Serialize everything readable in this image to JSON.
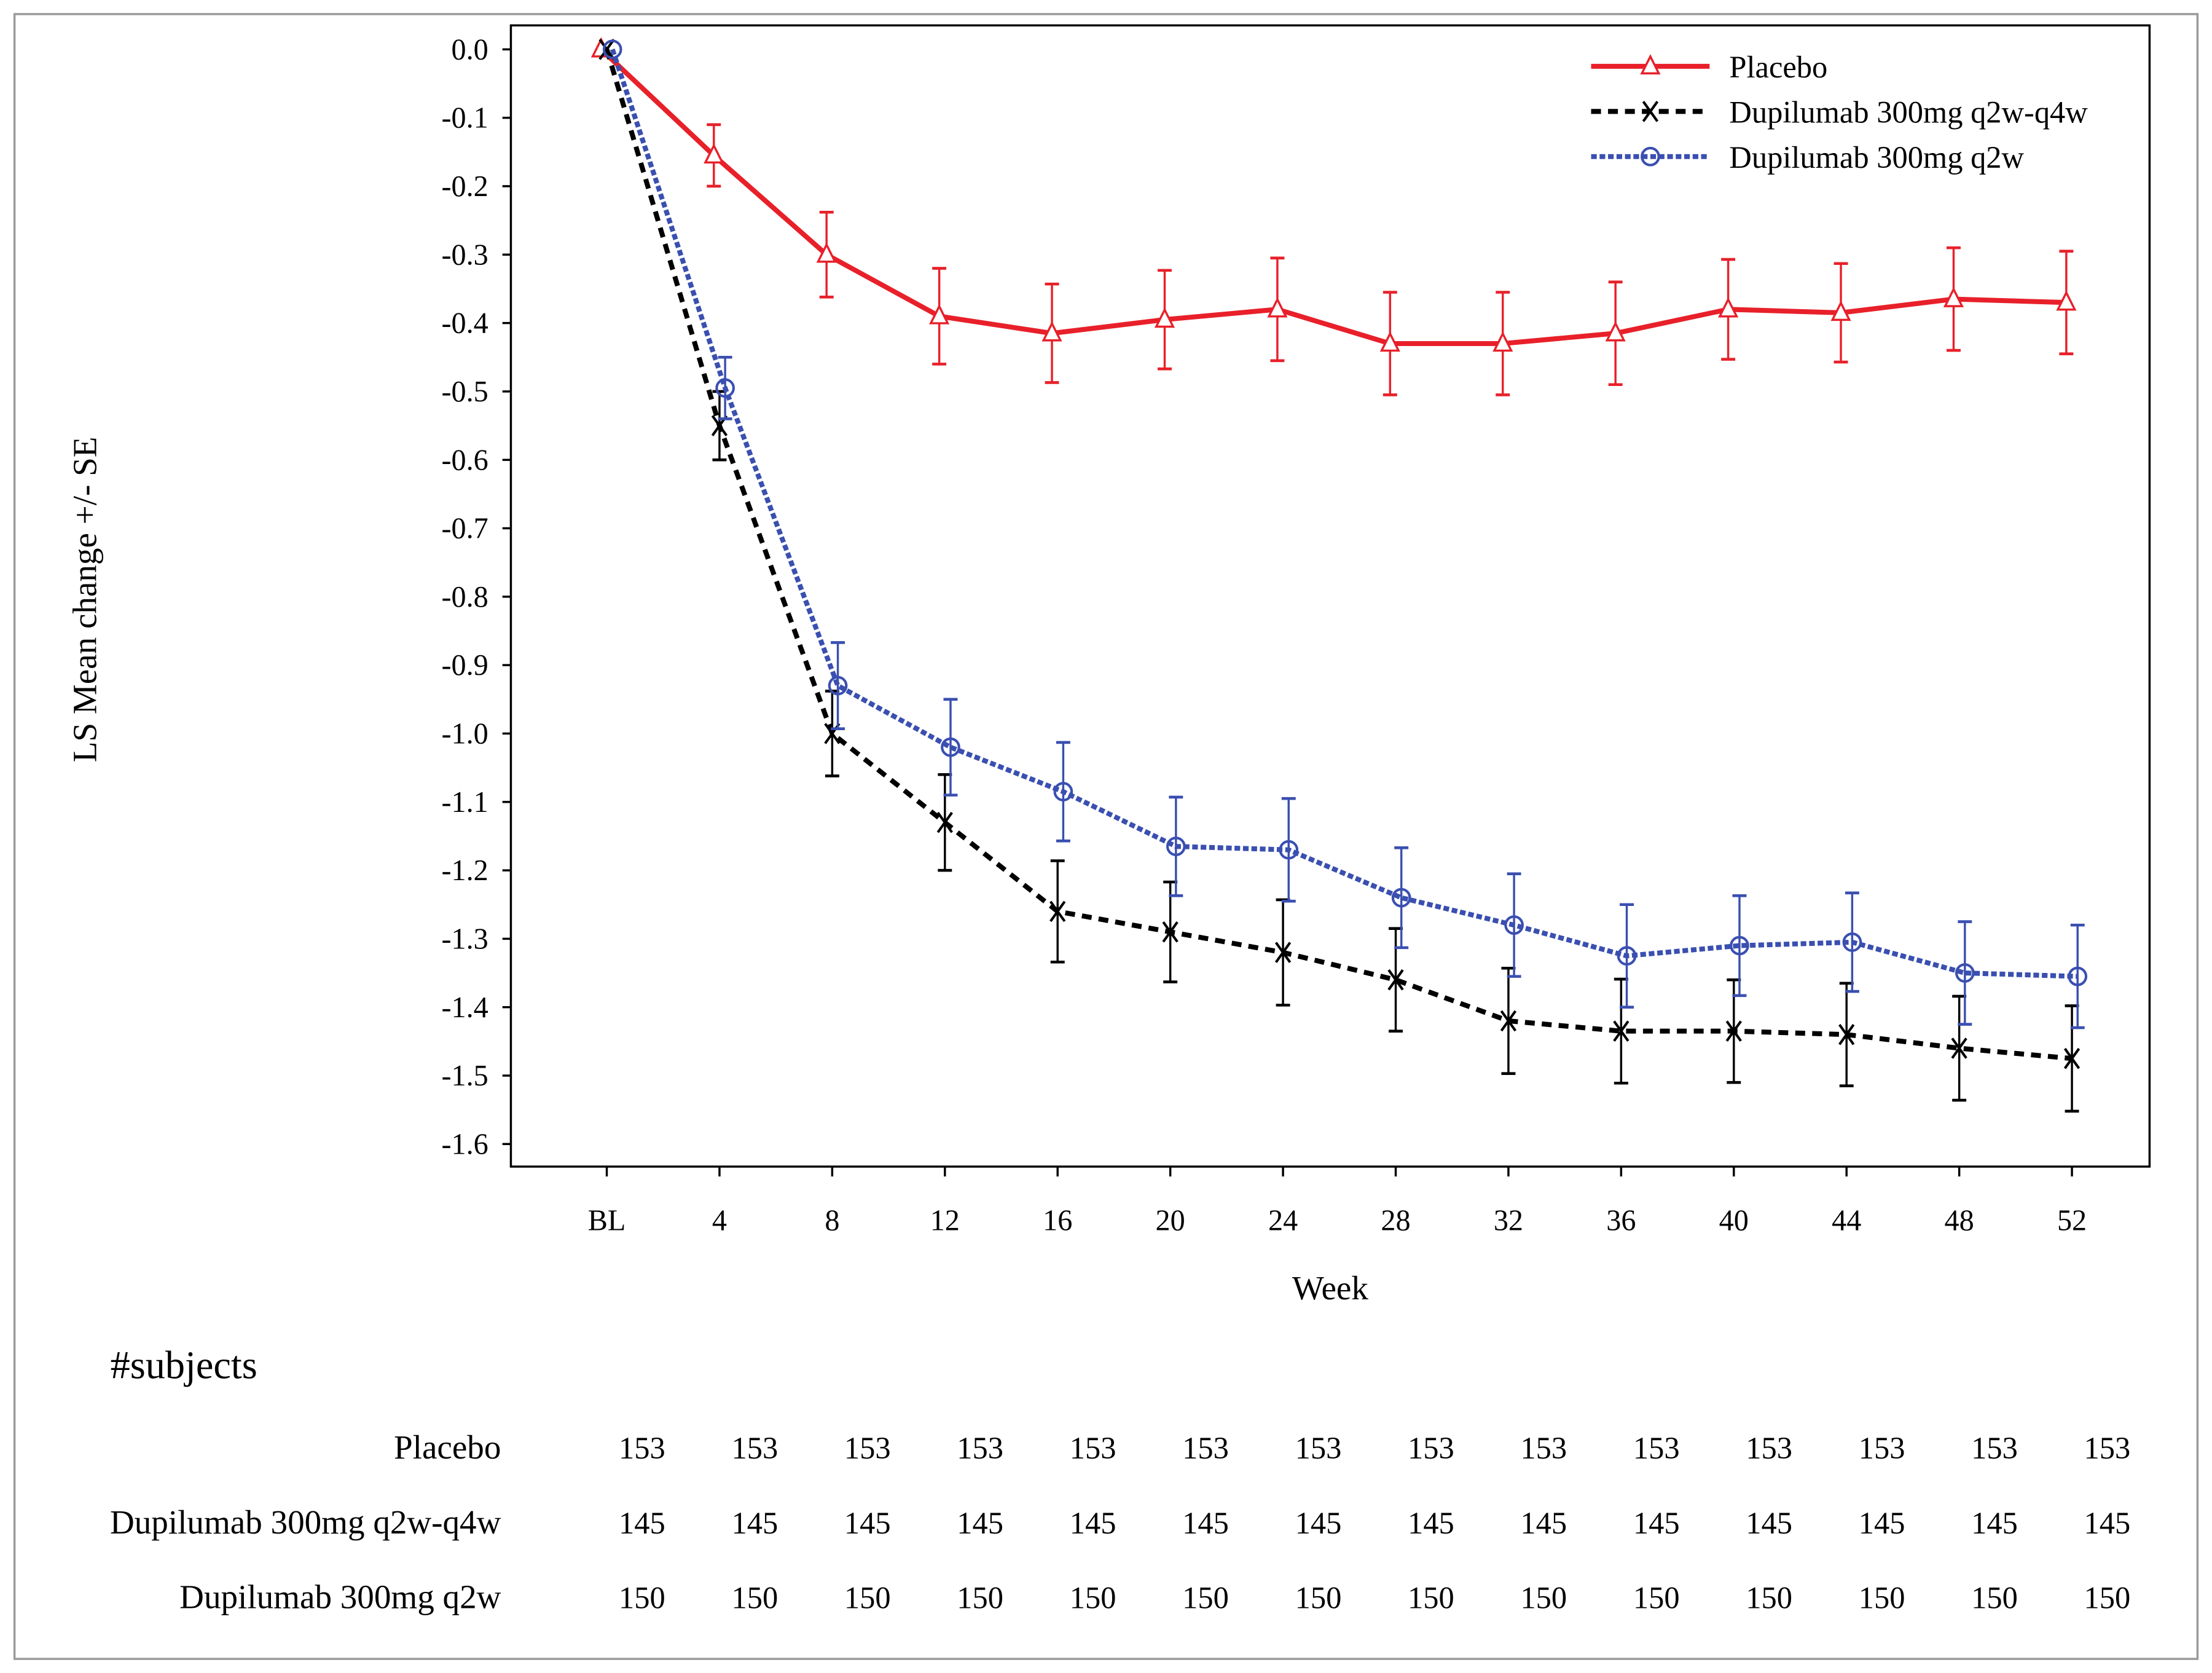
{
  "chart_data": {
    "type": "line",
    "ylabel": "LS Mean change +/- SE",
    "xlabel": "Week",
    "categories": [
      "BL",
      "4",
      "8",
      "12",
      "16",
      "20",
      "24",
      "28",
      "32",
      "36",
      "40",
      "44",
      "48",
      "52"
    ],
    "ylim": [
      -1.6,
      0.0
    ],
    "yticks": [
      "0.0",
      "-0.1",
      "-0.2",
      "-0.3",
      "-0.4",
      "-0.5",
      "-0.6",
      "-0.7",
      "-0.8",
      "-0.9",
      "-1.0",
      "-1.1",
      "-1.2",
      "-1.3",
      "-1.4",
      "-1.5",
      "-1.6"
    ],
    "grid": false,
    "legend_position": "top-right",
    "series": [
      {
        "name": "Placebo",
        "color": "#e8202a",
        "marker": "triangle",
        "line": "solid",
        "values": [
          0,
          -0.155,
          -0.3,
          -0.39,
          -0.415,
          -0.395,
          -0.38,
          -0.43,
          -0.43,
          -0.415,
          -0.38,
          -0.385,
          -0.365,
          -0.37
        ],
        "se": [
          0,
          0.045,
          0.062,
          0.07,
          0.072,
          0.072,
          0.075,
          0.075,
          0.075,
          0.075,
          0.073,
          0.072,
          0.075,
          0.075
        ]
      },
      {
        "name": "Dupilumab 300mg q2w-q4w",
        "color": "#000000",
        "marker": "x",
        "line": "dashed",
        "values": [
          0,
          -0.55,
          -1.0,
          -1.13,
          -1.26,
          -1.29,
          -1.32,
          -1.36,
          -1.42,
          -1.435,
          -1.435,
          -1.44,
          -1.46,
          -1.475
        ],
        "se": [
          0,
          0.05,
          0.062,
          0.07,
          0.074,
          0.073,
          0.077,
          0.075,
          0.077,
          0.076,
          0.075,
          0.075,
          0.076,
          0.077
        ]
      },
      {
        "name": "Dupilumab 300mg q2w",
        "color": "#3a4fb0",
        "marker": "circle",
        "line": "dotted",
        "values": [
          0,
          -0.495,
          -0.93,
          -1.02,
          -1.085,
          -1.165,
          -1.17,
          -1.24,
          -1.28,
          -1.325,
          -1.31,
          -1.305,
          -1.35,
          -1.355
        ],
        "se": [
          0,
          0.045,
          0.063,
          0.07,
          0.072,
          0.072,
          0.075,
          0.073,
          0.075,
          0.075,
          0.073,
          0.072,
          0.075,
          0.075
        ]
      }
    ]
  },
  "subjects": {
    "title": "#subjects",
    "rows": [
      {
        "label": "Placebo",
        "values": [
          "153",
          "153",
          "153",
          "153",
          "153",
          "153",
          "153",
          "153",
          "153",
          "153",
          "153",
          "153",
          "153",
          "153"
        ]
      },
      {
        "label": "Dupilumab 300mg q2w-q4w",
        "values": [
          "145",
          "145",
          "145",
          "145",
          "145",
          "145",
          "145",
          "145",
          "145",
          "145",
          "145",
          "145",
          "145",
          "145"
        ]
      },
      {
        "label": "Dupilumab 300mg q2w",
        "values": [
          "150",
          "150",
          "150",
          "150",
          "150",
          "150",
          "150",
          "150",
          "150",
          "150",
          "150",
          "150",
          "150",
          "150"
        ]
      }
    ]
  }
}
